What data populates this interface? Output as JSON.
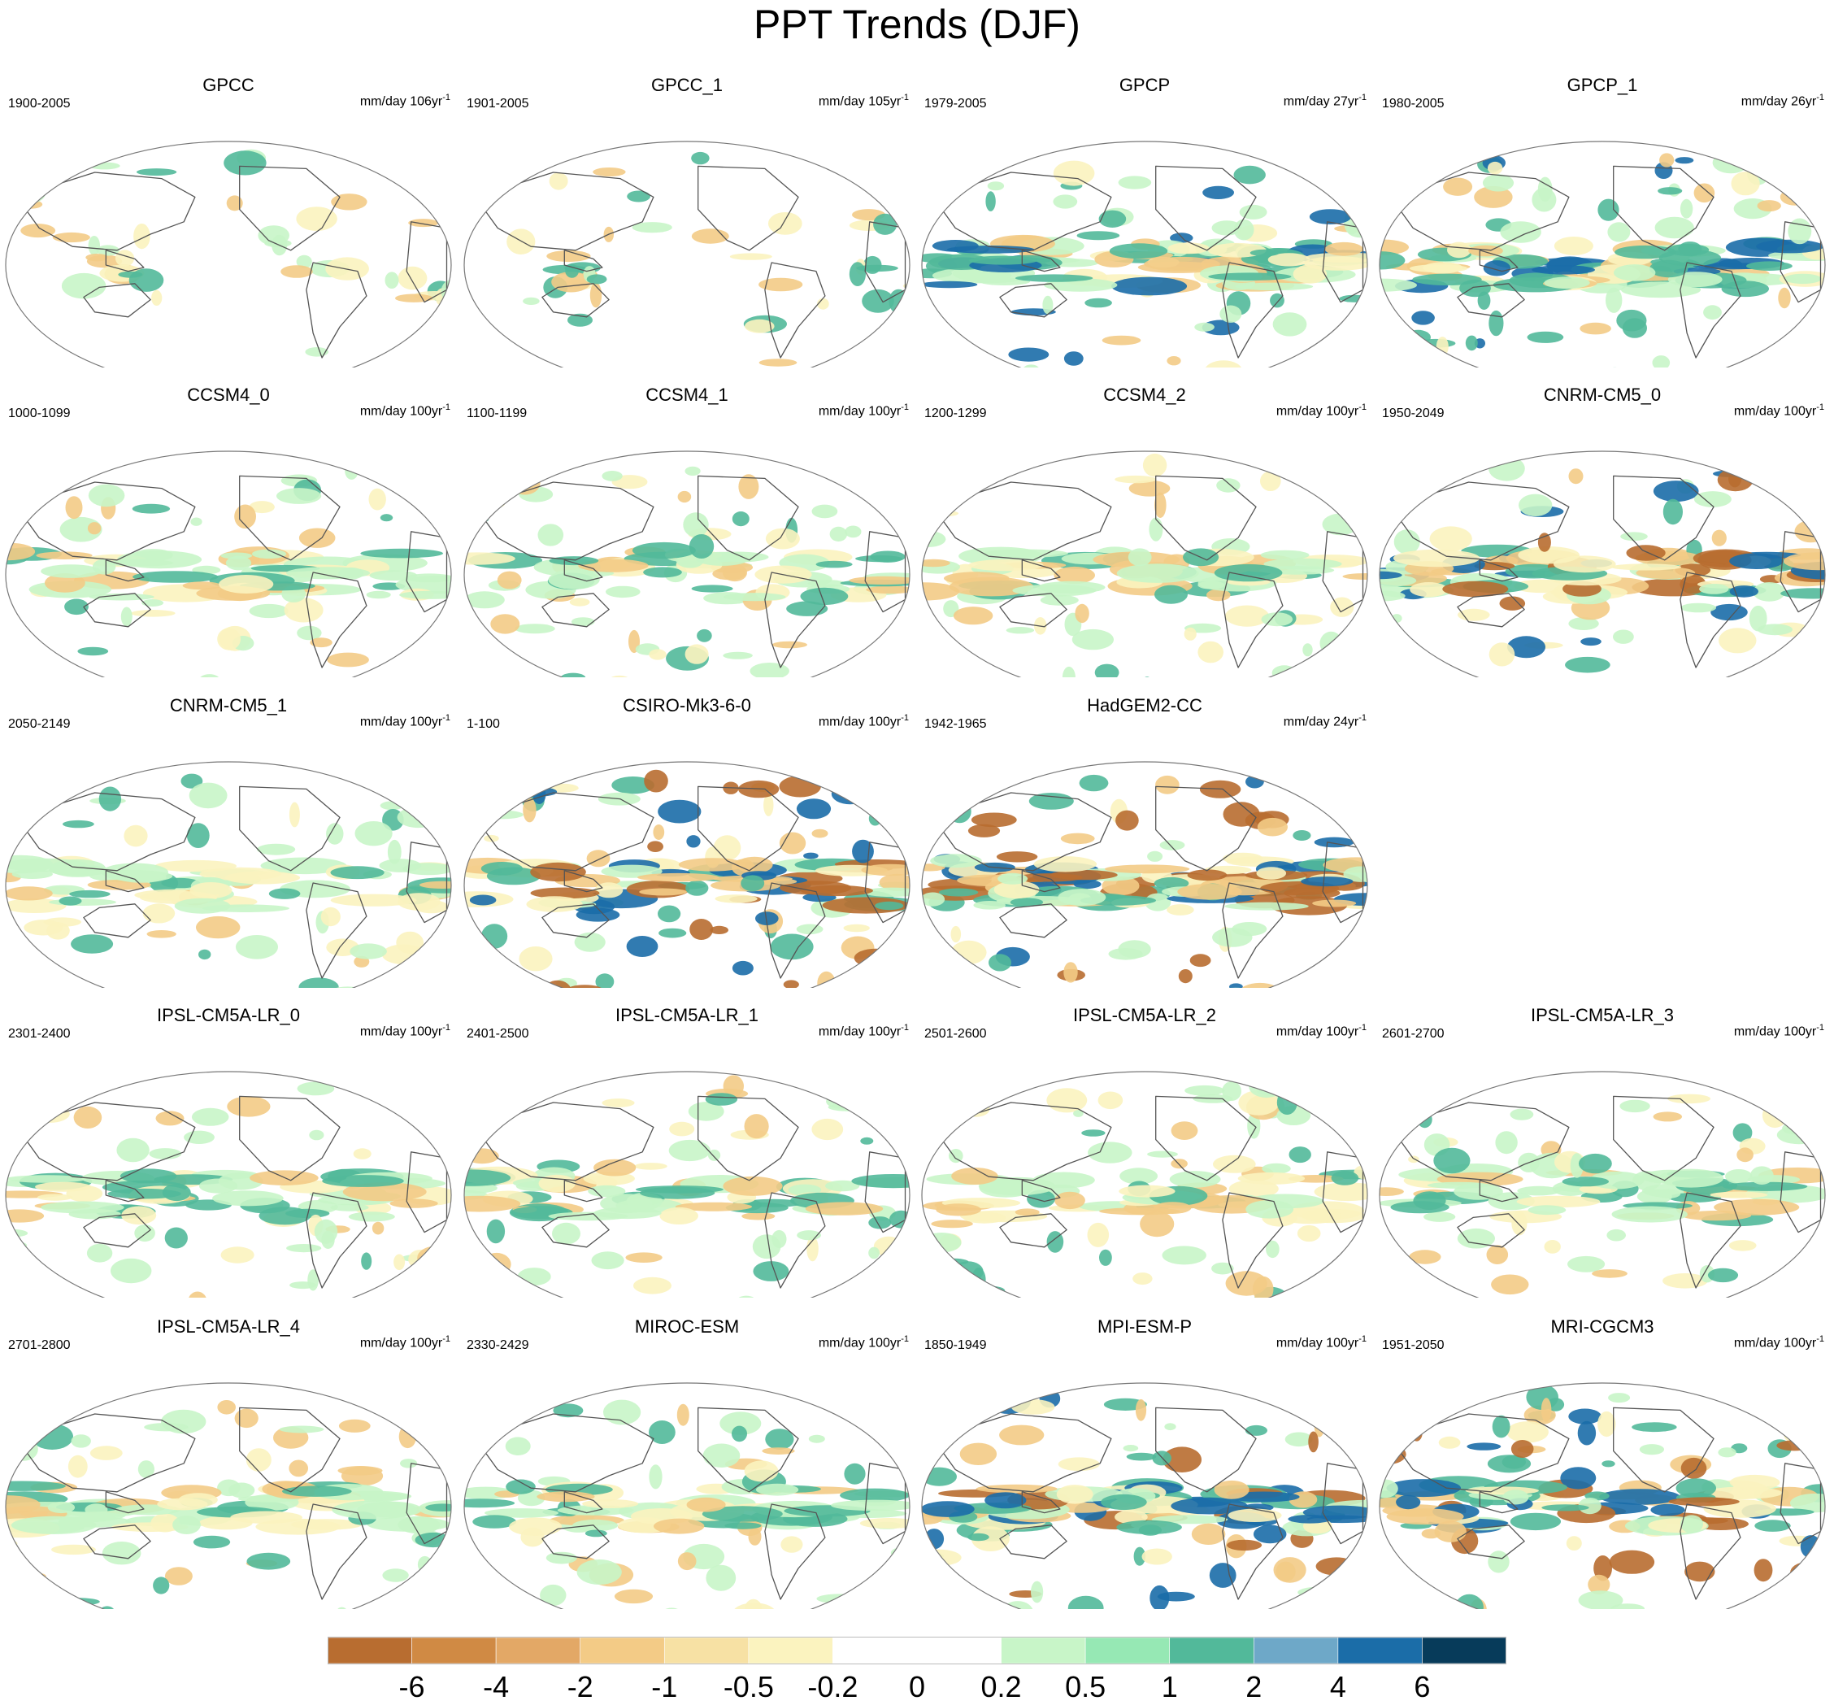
{
  "title": "PPT Trends (DJF)",
  "units_text": "mm/day",
  "colors": {
    "strong_neg": "#b86d30",
    "neg": "#f3cb86",
    "weak_neg": "#fbf3bf",
    "weak_pos": "#c8f5c8",
    "pos": "#52b99a",
    "strong_pos": "#1b6da8",
    "coast": "#555555",
    "outline": "#777777"
  },
  "panels": [
    {
      "name": "GPCC",
      "period": "1900-2005",
      "span": "106",
      "style": "obs_land"
    },
    {
      "name": "GPCC_1",
      "period": "1901-2005",
      "span": "105",
      "style": "obs_land"
    },
    {
      "name": "GPCP",
      "period": "1979-2005",
      "span": "27",
      "style": "obs"
    },
    {
      "name": "GPCP_1",
      "period": "1980-2005",
      "span": "26",
      "style": "obs"
    },
    {
      "name": "CCSM4_0",
      "period": "1000-1099",
      "span": "100",
      "style": "model_weak"
    },
    {
      "name": "CCSM4_1",
      "period": "1100-1199",
      "span": "100",
      "style": "model_weak"
    },
    {
      "name": "CCSM4_2",
      "period": "1200-1299",
      "span": "100",
      "style": "model_weak"
    },
    {
      "name": "CNRM-CM5_0",
      "period": "1950-2049",
      "span": "100",
      "style": "model_strong"
    },
    {
      "name": "CNRM-CM5_1",
      "period": "2050-2149",
      "span": "100",
      "style": "model_weak"
    },
    {
      "name": "CSIRO-Mk3-6-0",
      "period": "1-100",
      "span": "100",
      "style": "model_strong"
    },
    {
      "name": "HadGEM2-CC",
      "period": "1942-1965",
      "span": "24",
      "style": "model_very_strong"
    },
    null,
    {
      "name": "IPSL-CM5A-LR_0",
      "period": "2301-2400",
      "span": "100",
      "style": "model_weak"
    },
    {
      "name": "IPSL-CM5A-LR_1",
      "period": "2401-2500",
      "span": "100",
      "style": "model_weak"
    },
    {
      "name": "IPSL-CM5A-LR_2",
      "period": "2501-2600",
      "span": "100",
      "style": "model_weak"
    },
    {
      "name": "IPSL-CM5A-LR_3",
      "period": "2601-2700",
      "span": "100",
      "style": "model_weak"
    },
    {
      "name": "IPSL-CM5A-LR_4",
      "period": "2701-2800",
      "span": "100",
      "style": "model_weak"
    },
    {
      "name": "MIROC-ESM",
      "period": "2330-2429",
      "span": "100",
      "style": "model_weak"
    },
    {
      "name": "MPI-ESM-P",
      "period": "1850-1949",
      "span": "100",
      "style": "model_strong"
    },
    {
      "name": "MRI-CGCM3",
      "period": "1951-2050",
      "span": "100",
      "style": "model_strong"
    }
  ],
  "colorbar": {
    "labels": [
      "-6",
      "-4",
      "-2",
      "-1",
      "-0.5",
      "-0.2",
      "0",
      "0.2",
      "0.5",
      "1",
      "2",
      "4",
      "6"
    ],
    "colors": [
      "#b86d30",
      "#d08a44",
      "#e3a866",
      "#f3cb86",
      "#f7e1a4",
      "#fbf3bf",
      "#ffffff",
      "#ffffff",
      "#c8f5c8",
      "#96e8b4",
      "#52b99a",
      "#6ea8c8",
      "#1b6da8",
      "#073b5a"
    ]
  }
}
